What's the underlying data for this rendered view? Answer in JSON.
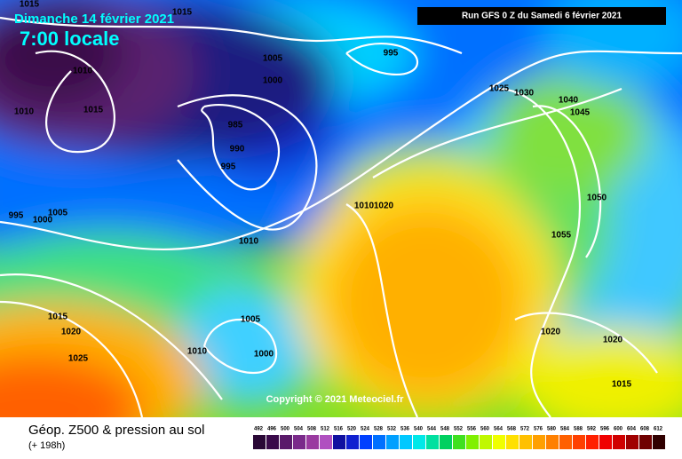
{
  "header": {
    "date": "Dimanche 14 février 2021",
    "time": "7:00 locale",
    "run": "Run GFS 0 Z du Samedi 6 février 2021"
  },
  "isobar_labels": [
    "1015",
    "1015",
    "1010",
    "1010",
    "1015",
    "1005",
    "995",
    "1000",
    "985",
    "990",
    "995",
    "1005",
    "995",
    "1000",
    "1010",
    "1020",
    "1010",
    "1025",
    "1030",
    "1040",
    "1045",
    "1050",
    "1055",
    "1015",
    "1020",
    "1025",
    "1005",
    "1010",
    "1000",
    "1020",
    "1020",
    "1015"
  ],
  "copyright": "Copyright © 2021 Meteociel.fr",
  "legend": {
    "title": "Géop. Z500 & pression au sol",
    "lead": "(+ 198h)",
    "scale": [
      492,
      496,
      500,
      504,
      508,
      512,
      516,
      520,
      524,
      528,
      532,
      536,
      540,
      544,
      548,
      552,
      556,
      560,
      564,
      568,
      572,
      576,
      580,
      584,
      588,
      592,
      596,
      600,
      604,
      608,
      612
    ]
  }
}
